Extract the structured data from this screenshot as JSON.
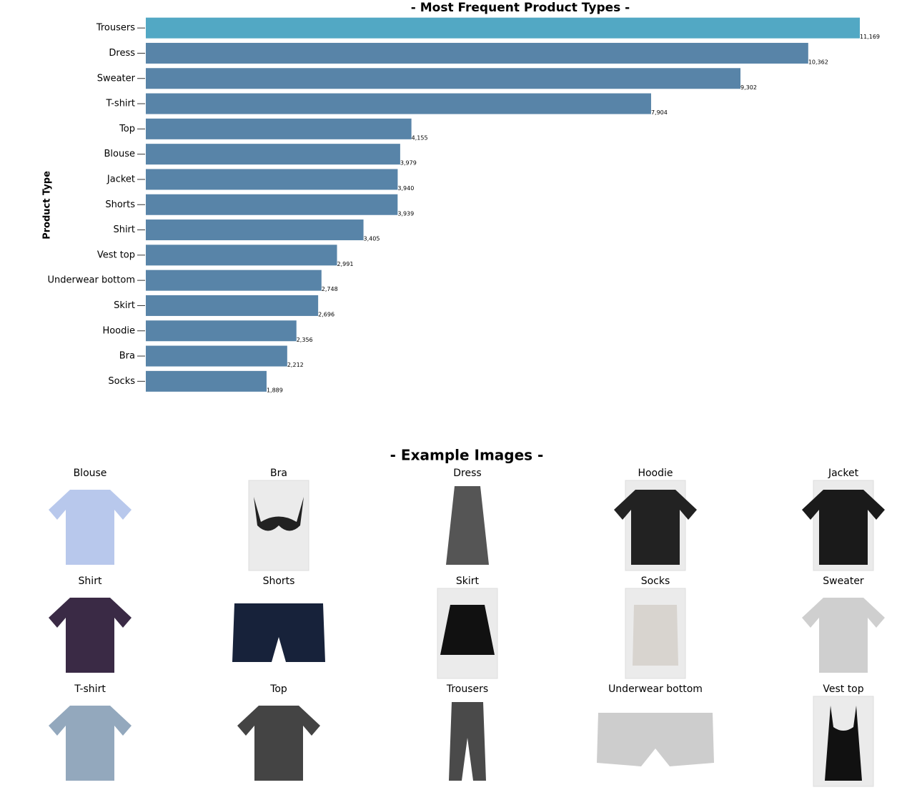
{
  "chart_data": {
    "type": "bar",
    "orientation": "horizontal",
    "title": "- Most Frequent Product Types -",
    "y_label": "Product Type",
    "categories": [
      "Trousers",
      "Dress",
      "Sweater",
      "T-shirt",
      "Top",
      "Blouse",
      "Jacket",
      "Shorts",
      "Shirt",
      "Vest top",
      "Underwear bottom",
      "Skirt",
      "Hoodie",
      "Bra",
      "Socks"
    ],
    "values": [
      11169,
      10362,
      9302,
      7904,
      4155,
      3979,
      3940,
      3939,
      3405,
      2991,
      2748,
      2696,
      2356,
      2212,
      1889
    ],
    "value_labels": [
      "11,169",
      "10,362",
      "9,302",
      "7,904",
      "4,155",
      "3,979",
      "3,940",
      "3,939",
      "3,405",
      "2,991",
      "2,748",
      "2,696",
      "2,356",
      "2,212",
      "1,889"
    ],
    "colors": [
      "#52a8c4",
      "#5884a8",
      "#5884a8",
      "#5884a8",
      "#5884a8",
      "#5884a8",
      "#5884a8",
      "#5884a8",
      "#5884a8",
      "#5884a8",
      "#5884a8",
      "#5884a8",
      "#5884a8",
      "#5884a8",
      "#5884a8"
    ],
    "grid": false
  },
  "example_images": {
    "title": "- Example Images -",
    "items": [
      "Blouse",
      "Bra",
      "Dress",
      "Hoodie",
      "Jacket",
      "Shirt",
      "Shorts",
      "Skirt",
      "Socks",
      "Sweater",
      "T-shirt",
      "Top",
      "Trousers",
      "Underwear bottom",
      "Vest top"
    ]
  }
}
